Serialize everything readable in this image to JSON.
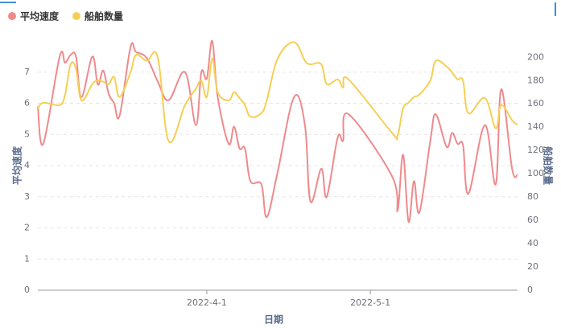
{
  "chart_data": {
    "type": "line",
    "legend": "top-left",
    "x_label": "日期",
    "y_label": "平均速度",
    "y2_label": "船舶数量",
    "x": [
      "2022-3-1",
      "2022-3-2",
      "2022-3-5",
      "2022-3-6",
      "2022-3-7",
      "2022-3-8",
      "2022-3-9",
      "2022-3-11",
      "2022-3-12",
      "2022-3-13",
      "2022-3-14",
      "2022-3-15",
      "2022-3-16",
      "2022-3-18",
      "2022-3-19",
      "2022-3-21",
      "2022-3-23",
      "2022-3-25",
      "2022-3-28",
      "2022-3-30",
      "2022-3-31",
      "2022-4-1",
      "2022-4-2",
      "2022-4-3",
      "2022-4-5",
      "2022-4-6",
      "2022-4-7",
      "2022-4-8",
      "2022-4-9",
      "2022-4-11",
      "2022-4-12",
      "2022-4-14",
      "2022-4-17",
      "2022-4-19",
      "2022-4-20",
      "2022-4-22",
      "2022-4-23",
      "2022-4-25",
      "2022-4-26",
      "2022-4-27",
      "2022-5-5",
      "2022-5-6",
      "2022-5-7",
      "2022-5-8",
      "2022-5-9",
      "2022-5-10",
      "2022-5-12",
      "2022-5-13",
      "2022-5-15",
      "2022-5-16",
      "2022-5-17",
      "2022-5-18",
      "2022-5-19",
      "2022-5-22",
      "2022-5-24",
      "2022-5-25",
      "2022-5-27",
      "2022-5-28"
    ],
    "series": [
      {
        "name": "平均速度",
        "color": "#ef8a8d",
        "values": [
          5.9,
          4.7,
          7.5,
          7.3,
          7.55,
          7.5,
          6.2,
          7.5,
          6.6,
          7.05,
          6.3,
          6.0,
          5.6,
          7.8,
          7.65,
          7.45,
          6.7,
          6.1,
          7.0,
          5.3,
          7.0,
          6.8,
          8.0,
          6.2,
          4.7,
          5.25,
          4.55,
          4.55,
          3.5,
          3.4,
          2.35,
          3.8,
          6.2,
          5.3,
          2.85,
          3.9,
          3.0,
          4.9,
          4.8,
          5.65,
          3.65,
          2.55,
          4.35,
          2.2,
          3.5,
          2.5,
          4.8,
          5.65,
          4.6,
          5.05,
          4.7,
          4.65,
          3.1,
          5.3,
          3.4,
          6.45,
          3.9,
          3.7
        ]
      },
      {
        "name": "船舶数量",
        "color": "#f5cf55",
        "axis": "y2",
        "values": [
          156,
          161,
          159,
          168,
          194,
          190,
          163,
          177,
          180,
          179,
          177,
          183,
          166,
          187,
          202,
          197,
          200,
          128,
          159,
          173,
          180,
          166,
          199,
          170,
          163,
          170,
          165,
          159,
          149,
          152,
          163,
          199,
          213,
          197,
          194,
          194,
          177,
          181,
          174,
          181,
          135,
          133,
          156,
          161,
          166,
          168,
          180,
          197,
          192,
          187,
          181,
          180,
          152,
          165,
          139,
          159,
          146,
          142
        ]
      }
    ],
    "xlim": [
      "2022-3-1",
      "2022-5-28"
    ],
    "xticks": [
      "2022-4-1",
      "2022-5-1"
    ],
    "ylim": [
      0,
      8
    ],
    "yticks": [
      0,
      1,
      2,
      3,
      4,
      5,
      6,
      7
    ],
    "y2lim": [
      0,
      214
    ],
    "y2ticks": [
      0,
      20,
      40,
      60,
      80,
      100,
      120,
      140,
      160,
      180,
      200
    ],
    "grid": true
  }
}
